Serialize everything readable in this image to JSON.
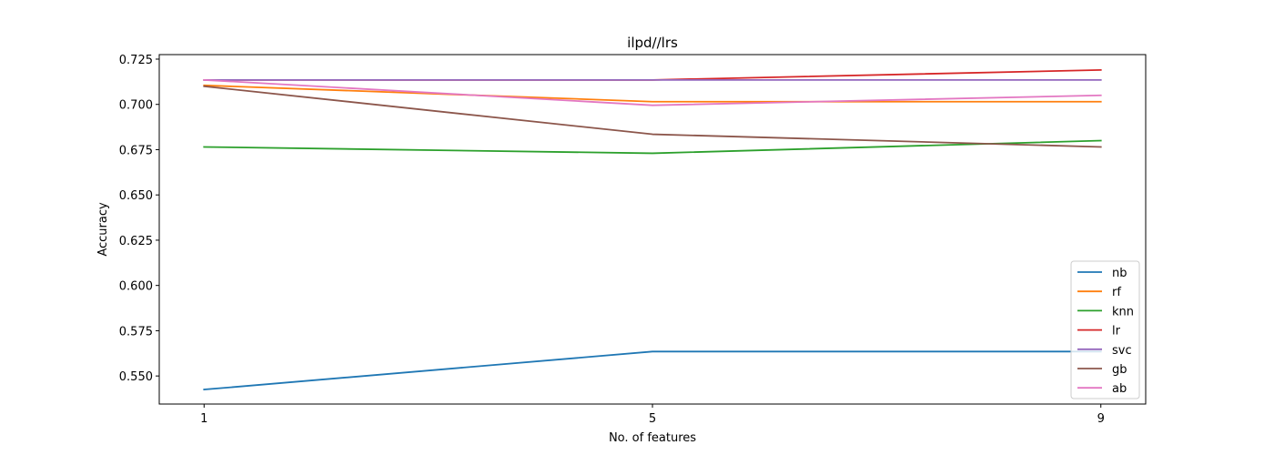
{
  "chart_data": {
    "type": "line",
    "title": "ilpd//lrs",
    "xlabel": "No. of features",
    "ylabel": "Accuracy",
    "x": [
      1,
      5,
      9
    ],
    "xticks": [
      "1",
      "5",
      "9"
    ],
    "xlim": [
      0.6,
      9.4
    ],
    "ylim": [
      0.5345,
      0.7275
    ],
    "yticks": [
      "0.550",
      "0.575",
      "0.600",
      "0.625",
      "0.650",
      "0.675",
      "0.700",
      "0.725"
    ],
    "ytick_values": [
      0.55,
      0.575,
      0.6,
      0.625,
      0.65,
      0.675,
      0.7,
      0.725
    ],
    "grid": false,
    "legend_position": "lower-right",
    "series": [
      {
        "name": "nb",
        "color": "#1f77b4",
        "values": [
          0.5425,
          0.5635,
          0.5635
        ]
      },
      {
        "name": "rf",
        "color": "#ff7f0e",
        "values": [
          0.7105,
          0.7015,
          0.7015
        ]
      },
      {
        "name": "knn",
        "color": "#2ca02c",
        "values": [
          0.6765,
          0.673,
          0.68
        ]
      },
      {
        "name": "lr",
        "color": "#d62728",
        "values": [
          0.7135,
          0.7135,
          0.719
        ]
      },
      {
        "name": "svc",
        "color": "#9467bd",
        "values": [
          0.7135,
          0.7135,
          0.7135
        ]
      },
      {
        "name": "gb",
        "color": "#8c564b",
        "values": [
          0.71,
          0.6835,
          0.6765
        ]
      },
      {
        "name": "ab",
        "color": "#e377c2",
        "values": [
          0.7135,
          0.6995,
          0.705
        ]
      }
    ]
  }
}
